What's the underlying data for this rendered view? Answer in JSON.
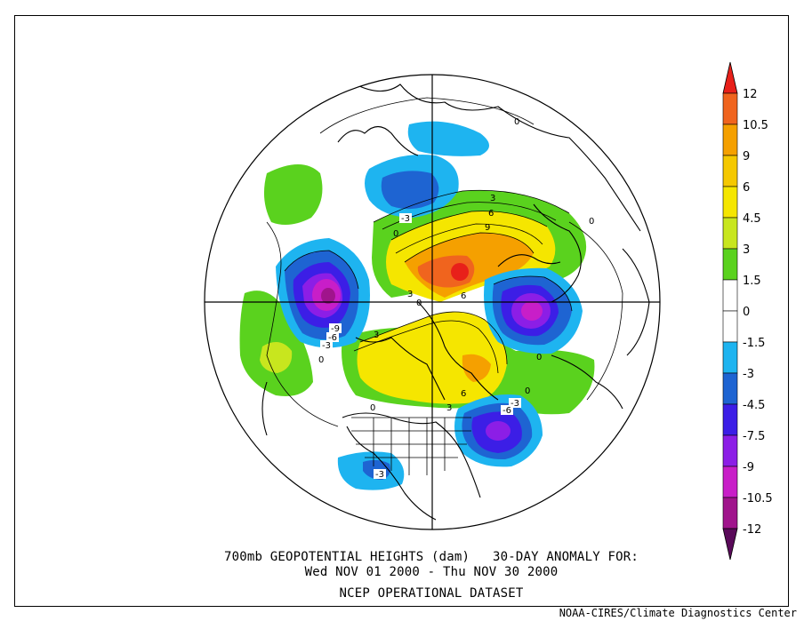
{
  "caption": {
    "line1": "700mb GEOPOTENTIAL HEIGHTS (dam)   30-DAY ANOMALY FOR:",
    "line2": "Wed NOV 01 2000 - Thu NOV 30 2000",
    "line3": "NCEP OPERATIONAL DATASET"
  },
  "credit": "NOAA-CIRES/Climate Diagnostics Center",
  "colorbar": {
    "labels": [
      "12",
      "10.5",
      "9",
      "6",
      "4.5",
      "3",
      "1.5",
      "0",
      "-1.5",
      "-3",
      "-4.5",
      "-7.5",
      "-9",
      "-10.5",
      "-12"
    ],
    "colors": [
      "#e8201a",
      "#f0641e",
      "#f5a000",
      "#f5c800",
      "#f5e600",
      "#c8e61e",
      "#5ad21e",
      "#ffffff",
      "#ffffff",
      "#1eb4f0",
      "#1e64d2",
      "#3c1ee6",
      "#8c1ee6",
      "#c81ec8",
      "#a0148c",
      "#5a0a5a"
    ]
  },
  "contour_labels": [
    "0",
    "0",
    "0",
    "0",
    "0",
    "0",
    "-3",
    "3",
    "6",
    "9",
    "3",
    "6",
    "-9",
    "-6",
    "-3",
    "3",
    "6",
    "3",
    "-3",
    "-6",
    "-3",
    "0",
    "0"
  ]
}
